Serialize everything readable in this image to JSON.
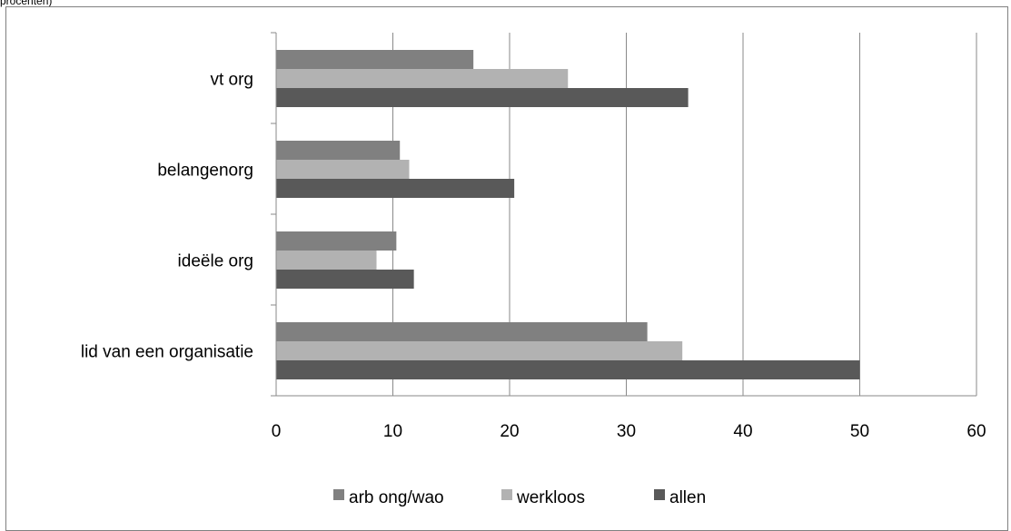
{
  "caption": "procenten)",
  "chart_data": {
    "type": "bar",
    "orientation": "horizontal",
    "categories": [
      "vt org",
      "belangenorg",
      "ideële org",
      "lid van een organisatie"
    ],
    "series": [
      {
        "name": "arb ong/wao",
        "color": "#808080",
        "values": [
          16.9,
          10.6,
          10.3,
          31.8
        ]
      },
      {
        "name": "werkloos",
        "color": "#b2b2b2",
        "values": [
          25.0,
          11.4,
          8.6,
          34.8
        ]
      },
      {
        "name": "allen",
        "color": "#595959",
        "values": [
          35.3,
          20.4,
          11.8,
          50.0
        ]
      }
    ],
    "xlim": [
      0,
      60
    ],
    "xticks": [
      0,
      10,
      20,
      30,
      40,
      50,
      60
    ],
    "grid": "vertical",
    "legend": "bottom"
  }
}
